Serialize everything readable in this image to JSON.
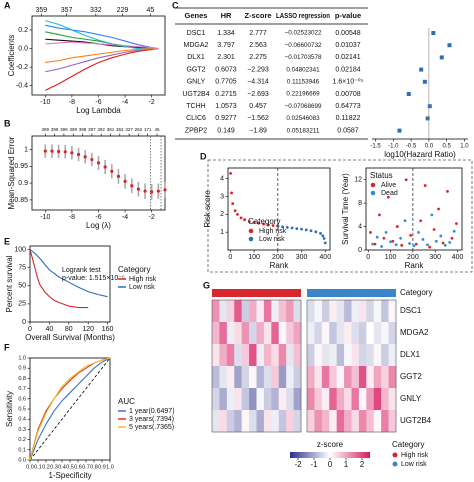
{
  "chart_data": [
    {
      "type": "line",
      "label": "A",
      "x_label": "Log Lambda",
      "y_label": "Coefficients",
      "xlim": [
        -11,
        -1
      ],
      "ylim": [
        -0.5,
        0.35
      ],
      "xticks": [
        -10,
        -8,
        -6,
        -4,
        -2
      ],
      "yticks": [
        -0.4,
        -0.2,
        {
          "value": 0,
          "label": "0.0"
        },
        0.2
      ],
      "top_ticks": [
        {
          "value": -10.3,
          "label": "359"
        },
        {
          "value": -8.4,
          "label": "357"
        },
        {
          "value": -6.2,
          "label": "332"
        },
        {
          "value": -4.2,
          "label": "229"
        },
        {
          "value": -2.1,
          "label": "45"
        }
      ],
      "x": [
        -10,
        -9,
        -8,
        -7,
        -6,
        -5,
        -4,
        -3,
        -2,
        -1.5
      ],
      "series": [
        {
          "color": "#3b7bff",
          "values": [
            0.25,
            0.22,
            0.2,
            0.18,
            0.15,
            0.12,
            0.08,
            0.04,
            0.01,
            0
          ]
        },
        {
          "color": "#e41a1c",
          "values": [
            -0.45,
            -0.38,
            -0.3,
            -0.22,
            -0.15,
            -0.1,
            -0.06,
            -0.03,
            -0.01,
            0
          ]
        },
        {
          "color": "#2ca02c",
          "values": [
            0.18,
            0.15,
            0.12,
            0.1,
            0.08,
            0.05,
            0.03,
            0.01,
            0,
            0
          ]
        },
        {
          "color": "#9467bd",
          "values": [
            -0.25,
            -0.22,
            -0.18,
            -0.14,
            -0.1,
            -0.07,
            -0.04,
            -0.02,
            0,
            0
          ]
        },
        {
          "color": "#111111",
          "values": [
            0.1,
            0.09,
            0.08,
            0.07,
            0.05,
            0.03,
            0.02,
            0.01,
            0,
            0
          ]
        },
        {
          "color": "#17becf",
          "values": [
            0.3,
            0.26,
            0.2,
            0.14,
            0.09,
            0.05,
            0.02,
            0,
            0,
            0
          ]
        },
        {
          "color": "#ff7f0e",
          "values": [
            -0.15,
            -0.13,
            -0.1,
            -0.08,
            -0.06,
            -0.04,
            -0.02,
            -0.01,
            0,
            0
          ]
        },
        {
          "color": "#e377c2",
          "values": [
            0.05,
            0.06,
            0.07,
            0.06,
            0.05,
            0.04,
            0.03,
            0.02,
            0.01,
            0
          ]
        }
      ]
    },
    {
      "type": "errorbar",
      "label": "B",
      "x_label": "Log (λ)",
      "y_label": "Mean-Squared Error",
      "xlim": [
        -11,
        -1
      ],
      "ylim": [
        0.82,
        1.04
      ],
      "xticks": [
        -10,
        -8,
        -6,
        -4,
        -2
      ],
      "yticks": [
        0.85,
        0.9,
        0.95,
        1
      ],
      "top_ticks": [
        {
          "value": -10,
          "label": "399"
        },
        {
          "value": -9.3,
          "label": "399"
        },
        {
          "value": -8.6,
          "label": "399"
        },
        {
          "value": -7.9,
          "label": "399"
        },
        {
          "value": -7.2,
          "label": "398"
        },
        {
          "value": -6.5,
          "label": "397"
        },
        {
          "value": -5.8,
          "label": "392"
        },
        {
          "value": -5.1,
          "label": "381"
        },
        {
          "value": -4.4,
          "label": "362"
        },
        {
          "value": -3.7,
          "label": "327"
        },
        {
          "value": -3.0,
          "label": "262"
        },
        {
          "value": -2.3,
          "label": "171"
        },
        {
          "value": -1.6,
          "label": "45"
        }
      ],
      "vlines": [
        -2.1,
        -1.3
      ],
      "color": "#d7262e",
      "x": [
        -10,
        -9.5,
        -9,
        -8.5,
        -8,
        -7.5,
        -7,
        -6.5,
        -6,
        -5.5,
        -5,
        -4.5,
        -4,
        -3.5,
        -3,
        -2.5,
        -2,
        -1.5,
        -1
      ],
      "values": [
        0.995,
        0.995,
        0.994,
        0.993,
        0.99,
        0.985,
        0.978,
        0.97,
        0.96,
        0.948,
        0.935,
        0.92,
        0.905,
        0.892,
        0.882,
        0.876,
        0.874,
        0.876,
        0.88
      ],
      "errors": [
        0.02,
        0.02,
        0.02,
        0.02,
        0.02,
        0.02,
        0.02,
        0.02,
        0.021,
        0.021,
        0.021,
        0.022,
        0.022,
        0.022,
        0.022,
        0.023,
        0.023,
        0.023,
        0.023
      ]
    },
    {
      "type": "forest",
      "label": "C",
      "x_label": "log10(Hazard Ratio)",
      "xlim": [
        -1.6,
        1.1
      ],
      "xticks": [
        -1.5,
        {
          "value": -1,
          "label": "-1.0"
        },
        -0.5,
        {
          "value": 0,
          "label": "0.0"
        },
        0.5,
        {
          "value": 1,
          "label": "1.0"
        }
      ],
      "ref": 0,
      "color": "#2f6db5",
      "table": {
        "columns": [
          "Genes",
          "HR",
          "Z-score",
          "LASSO regression",
          "p-value"
        ],
        "rows": [
          [
            "DSC1",
            "1.334",
            "2.777",
            "−0.02523022",
            "0.00548"
          ],
          [
            "MDGA2",
            "3.797",
            "2.563",
            "−0.06600732",
            "0.01037"
          ],
          [
            "DLX1",
            "2.301",
            "2.275",
            "−0.01703578",
            "0.02141"
          ],
          [
            "GGT2",
            "0.6073",
            "−2.293",
            "0.04802341",
            "0.02184"
          ],
          [
            "GNLY",
            "0.7705",
            "−4.314",
            "0.11153946",
            "1.6×10⁻⁰⁵"
          ],
          [
            "UGT2B4",
            "0.2715",
            "−2.693",
            "0.22196669",
            "0.00708"
          ],
          [
            "TCHH",
            "1.0573",
            "0.457",
            "−0.07068699",
            "0.64773"
          ],
          [
            "CLIC6",
            "0.9277",
            "−1.562",
            "0.02546083",
            "0.11822"
          ],
          [
            "ZPBP2",
            "0.149",
            "−1.89",
            "0.05183211",
            "0.0587"
          ]
        ]
      },
      "values": [
        0.125,
        0.579,
        0.362,
        -0.217,
        -0.113,
        -0.566,
        0.024,
        -0.033,
        -0.827
      ]
    },
    {
      "type": "scatter",
      "label": "D",
      "x_label": "Rank",
      "y_label": "Risk score",
      "legend_title": "Category",
      "xlim": [
        -10,
        420
      ],
      "ylim": [
        0,
        4.6
      ],
      "xticks": [
        0,
        100,
        200,
        300,
        400
      ],
      "yticks": [
        1,
        2,
        3,
        4
      ],
      "cutoff": 200,
      "series": [
        {
          "name": "High risk",
          "color": "#d7262e",
          "x": [
            1,
            5,
            10,
            20,
            30,
            45,
            60,
            80,
            100,
            120,
            140,
            160,
            180,
            199
          ],
          "values": [
            4.3,
            3.2,
            2.6,
            2.2,
            2.0,
            1.8,
            1.7,
            1.6,
            1.55,
            1.5,
            1.45,
            1.4,
            1.37,
            1.34
          ]
        },
        {
          "name": "Low risk",
          "color": "#2f6db5",
          "x": [
            201,
            220,
            240,
            260,
            280,
            300,
            320,
            340,
            360,
            380,
            390,
            395,
            400
          ],
          "values": [
            1.33,
            1.3,
            1.27,
            1.24,
            1.2,
            1.17,
            1.13,
            1.08,
            1.02,
            0.93,
            0.8,
            0.65,
            0.4
          ]
        }
      ]
    },
    {
      "type": "scatter",
      "x_label": "Rank",
      "y_label": "Survival Time (Year)",
      "legend_title": "Status",
      "xlim": [
        -10,
        420
      ],
      "ylim": [
        0,
        14
      ],
      "xticks": [
        0,
        100,
        200,
        300,
        400
      ],
      "yticks": [
        0,
        4,
        8,
        12
      ],
      "cutoff": 200,
      "series": [
        {
          "name": "Alive",
          "color": "#d7262e",
          "x": [
            10,
            30,
            50,
            70,
            90,
            110,
            130,
            150,
            170,
            190,
            215,
            235,
            255,
            275,
            295,
            315,
            335,
            355,
            375,
            395
          ],
          "values": [
            3,
            1,
            6,
            2,
            9,
            1.5,
            4,
            0.8,
            12,
            2.5,
            1,
            5,
            11,
            0.5,
            3.5,
            7,
            1.2,
            10,
            2,
            4.5
          ]
        },
        {
          "name": "Dead",
          "color": "#2f8fd0",
          "x": [
            20,
            40,
            60,
            80,
            100,
            125,
            145,
            165,
            185,
            205,
            225,
            245,
            265,
            285,
            305,
            325,
            345,
            365,
            385
          ],
          "values": [
            1,
            2.2,
            0.6,
            3,
            1.4,
            0.9,
            2,
            5,
            1.1,
            0.7,
            3,
            1.8,
            0.9,
            6,
            1.5,
            2.4,
            0.8,
            1.3,
            3.2
          ]
        }
      ]
    },
    {
      "type": "line",
      "label": "E",
      "x_label": "Overall Survival (Months)",
      "y_label": "Percent survival",
      "legend_title": "Category",
      "annotations": [
        "Logrank test",
        "p-value: 1.515×10⁻⁵"
      ],
      "xlim": [
        0,
        165
      ],
      "ylim": [
        0,
        105
      ],
      "xticks": [
        0,
        40,
        80,
        120,
        160
      ],
      "yticks": [
        0,
        25,
        50,
        75,
        100
      ],
      "series": [
        {
          "name": "High risk",
          "color": "#d7262e",
          "x": [
            0,
            5,
            10,
            15,
            20,
            30,
            40,
            50,
            60,
            80,
            100,
            120
          ],
          "values": [
            100,
            88,
            75,
            62,
            52,
            42,
            35,
            30,
            27,
            22,
            20,
            20
          ]
        },
        {
          "name": "Low risk",
          "color": "#2f6db5",
          "x": [
            0,
            10,
            20,
            30,
            40,
            60,
            80,
            100,
            120,
            140,
            160
          ],
          "values": [
            100,
            95,
            88,
            80,
            72,
            62,
            55,
            48,
            42,
            38,
            35
          ]
        }
      ]
    },
    {
      "type": "line",
      "label": "F",
      "x_label": "1-Specificity",
      "y_label": "Sensitivity",
      "legend_title": "AUC",
      "diagonal": true,
      "xlim": [
        0,
        1
      ],
      "ylim": [
        0,
        1
      ],
      "xticks": [
        {
          "value": 0,
          "label": "0.0"
        },
        0.1,
        0.2,
        0.3,
        0.4,
        0.5,
        0.6,
        0.7,
        0.8,
        0.9,
        {
          "value": 1,
          "label": "1.0"
        }
      ],
      "yticks": [
        {
          "value": 0,
          "label": "0.0"
        },
        0.1,
        0.2,
        0.3,
        0.4,
        0.5,
        0.6,
        0.7,
        0.8,
        0.9,
        {
          "value": 1,
          "label": "1.0"
        }
      ],
      "series": [
        {
          "name": "1 year(0.6497)",
          "color": "#3b6fd6",
          "x": [
            0,
            0.1,
            0.2,
            0.3,
            0.4,
            0.5,
            0.6,
            0.7,
            0.8,
            0.9,
            1
          ],
          "values": [
            0,
            0.2,
            0.35,
            0.48,
            0.58,
            0.66,
            0.74,
            0.82,
            0.9,
            0.96,
            1
          ]
        },
        {
          "name": "3 years(.7394)",
          "color": "#e03030",
          "x": [
            0,
            0.1,
            0.2,
            0.3,
            0.4,
            0.5,
            0.6,
            0.7,
            0.8,
            0.9,
            1
          ],
          "values": [
            0,
            0.3,
            0.48,
            0.6,
            0.7,
            0.78,
            0.85,
            0.9,
            0.95,
            0.98,
            1
          ]
        },
        {
          "name": "5 years(.7365)",
          "color": "#f0c020",
          "x": [
            0,
            0.1,
            0.2,
            0.3,
            0.4,
            0.5,
            0.6,
            0.7,
            0.8,
            0.9,
            1
          ],
          "values": [
            0,
            0.28,
            0.46,
            0.6,
            0.72,
            0.8,
            0.86,
            0.92,
            0.95,
            0.98,
            1
          ]
        }
      ]
    },
    {
      "type": "heatmap",
      "label": "G",
      "category_label": "Category",
      "legend_title": "Category",
      "rows": [
        "DSC1",
        "MDGA2",
        "DLX1",
        "GGT2",
        "GNLY",
        "UGT2B4"
      ],
      "colorbar": {
        "title": "z-score",
        "zlim": [
          -2.5,
          2.5
        ],
        "ticks": [
          -2,
          -1,
          0,
          1,
          2
        ],
        "colors": [
          "#2c2f8a",
          "#ffffff",
          "#d81b60"
        ]
      },
      "series": [
        {
          "name": "High risk",
          "color": "#d7262e",
          "values": [
            [
              1.2,
              -0.3,
              0.5,
              1.8,
              -0.6,
              0.9,
              0.2,
              1.5,
              -0.2,
              0.7,
              1.1,
              -0.4
            ],
            [
              0.8,
              1.6,
              -0.2,
              0.4,
              1.2,
              -0.5,
              0.9,
              0.3,
              1.7,
              -0.1,
              0.6,
              1.0
            ],
            [
              0.3,
              0.9,
              1.4,
              -0.4,
              0.6,
              1.9,
              -0.2,
              0.8,
              0.4,
              1.3,
              -0.3,
              0.7
            ],
            [
              -0.8,
              -0.3,
              0.2,
              -1.1,
              -0.5,
              0.1,
              -0.9,
              -0.4,
              0.6,
              -1.2,
              -0.2,
              -0.6
            ],
            [
              -0.5,
              -1.0,
              -0.2,
              0.3,
              -0.7,
              -1.3,
              -0.1,
              -0.6,
              -0.9,
              0.2,
              -0.4,
              -1.1
            ],
            [
              -0.3,
              0.4,
              -0.6,
              -0.9,
              0.1,
              -0.4,
              -1.0,
              0.3,
              -0.2,
              -0.7,
              0.5,
              -0.5
            ]
          ]
        },
        {
          "name": "Low risk",
          "color": "#3a86c8",
          "values": [
            [
              -0.4,
              -0.1,
              -0.6,
              0.2,
              -0.3,
              -0.8,
              -0.2,
              0.3,
              -0.5,
              -0.1,
              -0.7,
              0.1
            ],
            [
              -0.2,
              -0.5,
              0.1,
              -0.7,
              -0.3,
              0.2,
              -0.4,
              -0.6,
              0.0,
              -0.3,
              -0.1,
              -0.5
            ],
            [
              -0.6,
              0.1,
              -0.3,
              -0.2,
              -0.8,
              -0.1,
              0.3,
              -0.5,
              -0.4,
              0.1,
              -0.6,
              -0.2
            ],
            [
              0.9,
              0.3,
              1.5,
              0.6,
              -0.1,
              1.2,
              0.7,
              1.9,
              0.2,
              1.0,
              0.5,
              1.3
            ],
            [
              1.3,
              0.6,
              0.2,
              1.7,
              0.9,
              0.4,
              1.5,
              0.1,
              1.1,
              2.0,
              0.8,
              0.3
            ],
            [
              0.5,
              1.2,
              0.8,
              0.2,
              1.6,
              0.9,
              0.4,
              1.3,
              0.7,
              0.1,
              1.4,
              0.6
            ]
          ]
        }
      ]
    }
  ]
}
